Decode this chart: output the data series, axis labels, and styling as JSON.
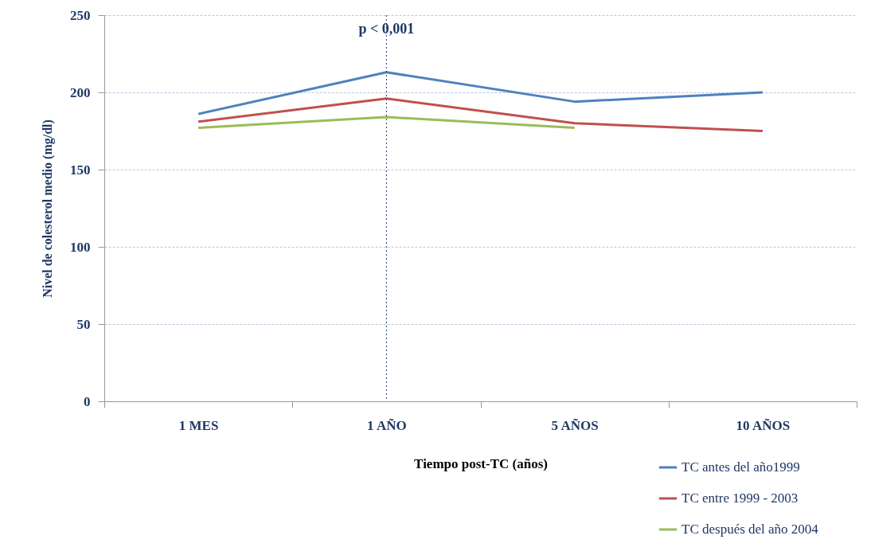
{
  "chart_data": {
    "type": "line",
    "xlabel": "Tiempo post-TC (años)",
    "ylabel": "Nivel de colesterol medio (mg/dl)",
    "categories": [
      "1 MES",
      "1 AÑO",
      "5 AÑOS",
      "10 AÑOS"
    ],
    "series": [
      {
        "name": "TC antes del año1999",
        "color": "#4f81bd",
        "values": [
          186,
          213,
          194,
          200
        ]
      },
      {
        "name": "TC entre 1999 - 2003",
        "color": "#c0504d",
        "values": [
          181,
          196,
          180,
          175
        ]
      },
      {
        "name": "TC después del año 2004",
        "color": "#9bbb59",
        "values": [
          177,
          184,
          177,
          null
        ]
      }
    ],
    "ylim": [
      0,
      250
    ],
    "yticks": [
      0,
      50,
      100,
      150,
      200,
      250
    ],
    "grid": "y",
    "legend": "bottom right",
    "marker": "none",
    "line_style": "solid",
    "ref_lines": [
      {
        "axis": "x",
        "value": "1 AÑO",
        "label": "p < 0,001",
        "color": "#1f3864",
        "line_style": "dotted"
      }
    ]
  }
}
